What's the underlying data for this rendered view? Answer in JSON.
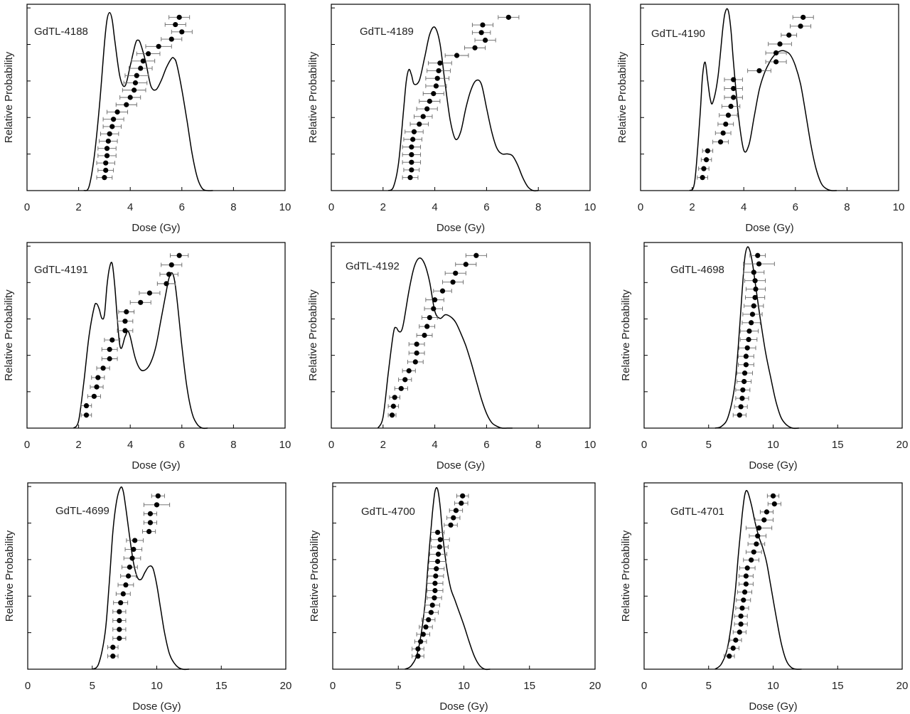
{
  "chart_data": [
    {
      "type": "line",
      "title": "GdTL-4188",
      "xlabel": "Dose (Gy)",
      "ylabel": "Relative Probability",
      "xlim": [
        0,
        10
      ],
      "xticks": [
        "0",
        "2",
        "4",
        "6",
        "8",
        "10"
      ],
      "curve": {
        "x": [
          2.2,
          2.4,
          2.6,
          2.8,
          3.0,
          3.1,
          3.2,
          3.3,
          3.4,
          3.6,
          3.8,
          4.0,
          4.2,
          4.3,
          4.4,
          4.6,
          4.8,
          5.0,
          5.2,
          5.4,
          5.6,
          5.7,
          5.8,
          6.0,
          6.2,
          6.4,
          6.6,
          6.8,
          7.0,
          7.2
        ],
        "y": [
          0.0,
          0.02,
          0.18,
          0.45,
          0.8,
          0.93,
          0.97,
          0.93,
          0.82,
          0.62,
          0.57,
          0.68,
          0.8,
          0.82,
          0.8,
          0.7,
          0.57,
          0.55,
          0.6,
          0.67,
          0.72,
          0.72,
          0.69,
          0.55,
          0.38,
          0.2,
          0.07,
          0.01,
          0.0,
          0.0
        ]
      },
      "points": {
        "dose": [
          3.0,
          3.05,
          3.05,
          3.1,
          3.1,
          3.15,
          3.2,
          3.3,
          3.35,
          3.5,
          3.85,
          4.0,
          4.15,
          4.2,
          4.25,
          4.4,
          4.5,
          4.7,
          5.1,
          5.6,
          6.0,
          5.75,
          5.9
        ],
        "err": [
          0.3,
          0.3,
          0.35,
          0.35,
          0.35,
          0.35,
          0.35,
          0.35,
          0.4,
          0.4,
          0.4,
          0.4,
          0.45,
          0.45,
          0.45,
          0.45,
          0.45,
          0.45,
          0.5,
          0.4,
          0.4,
          0.4,
          0.4
        ]
      }
    },
    {
      "type": "line",
      "title": "GdTL-4189",
      "xlabel": "Dose (Gy)",
      "ylabel": "Relative Probability",
      "xlim": [
        0,
        10
      ],
      "xticks": [
        "0",
        "2",
        "4",
        "6",
        "8",
        "10"
      ],
      "curve": {
        "x": [
          2.2,
          2.4,
          2.6,
          2.8,
          2.9,
          3.0,
          3.1,
          3.2,
          3.4,
          3.6,
          3.8,
          4.0,
          4.2,
          4.4,
          4.6,
          4.8,
          5.0,
          5.2,
          5.4,
          5.6,
          5.8,
          6.0,
          6.2,
          6.4,
          6.6,
          6.8,
          7.0,
          7.2,
          7.4,
          7.6,
          7.8,
          8.0
        ],
        "y": [
          0.0,
          0.02,
          0.15,
          0.45,
          0.6,
          0.66,
          0.63,
          0.58,
          0.6,
          0.72,
          0.85,
          0.89,
          0.8,
          0.58,
          0.38,
          0.28,
          0.32,
          0.45,
          0.55,
          0.6,
          0.58,
          0.45,
          0.32,
          0.23,
          0.2,
          0.2,
          0.19,
          0.14,
          0.07,
          0.02,
          0.0,
          0.0
        ]
      },
      "points": {
        "dose": [
          3.05,
          3.1,
          3.1,
          3.1,
          3.1,
          3.15,
          3.2,
          3.4,
          3.55,
          3.7,
          3.8,
          3.95,
          4.05,
          4.1,
          4.15,
          4.2,
          4.85,
          5.55,
          5.95,
          5.8,
          5.85,
          6.85
        ],
        "err": [
          0.3,
          0.3,
          0.35,
          0.35,
          0.35,
          0.35,
          0.35,
          0.35,
          0.35,
          0.4,
          0.4,
          0.4,
          0.4,
          0.45,
          0.45,
          0.45,
          0.45,
          0.4,
          0.4,
          0.35,
          0.4,
          0.4
        ]
      }
    },
    {
      "type": "line",
      "title": "GdTL-4190",
      "xlabel": "Dose (Gy)",
      "ylabel": "Relative Probability",
      "xlim": [
        0,
        10
      ],
      "xticks": [
        "0",
        "2",
        "4",
        "6",
        "8",
        "10"
      ],
      "curve": {
        "x": [
          1.9,
          2.1,
          2.3,
          2.4,
          2.5,
          2.6,
          2.7,
          2.8,
          3.0,
          3.2,
          3.3,
          3.4,
          3.5,
          3.6,
          3.8,
          4.0,
          4.2,
          4.4,
          4.6,
          4.8,
          5.0,
          5.2,
          5.4,
          5.6,
          5.8,
          6.0,
          6.2,
          6.4,
          6.6,
          6.8,
          7.0,
          7.2,
          7.4,
          7.6
        ],
        "y": [
          0.0,
          0.05,
          0.4,
          0.62,
          0.7,
          0.6,
          0.5,
          0.48,
          0.62,
          0.9,
          0.98,
          0.98,
          0.88,
          0.7,
          0.4,
          0.22,
          0.25,
          0.4,
          0.55,
          0.64,
          0.7,
          0.74,
          0.76,
          0.76,
          0.74,
          0.68,
          0.58,
          0.42,
          0.25,
          0.12,
          0.04,
          0.01,
          0.0,
          0.0
        ]
      },
      "points": {
        "dose": [
          2.4,
          2.45,
          2.55,
          2.6,
          3.1,
          3.2,
          3.3,
          3.4,
          3.5,
          3.6,
          3.6,
          3.6,
          4.6,
          5.25,
          5.25,
          5.4,
          5.75,
          6.2,
          6.3
        ],
        "err": [
          0.2,
          0.2,
          0.2,
          0.2,
          0.3,
          0.3,
          0.3,
          0.35,
          0.35,
          0.35,
          0.35,
          0.35,
          0.45,
          0.4,
          0.4,
          0.45,
          0.3,
          0.4,
          0.4
        ]
      }
    },
    {
      "type": "line",
      "title": "GdTL-4191",
      "xlabel": "Dose (Gy)",
      "ylabel": "Relative Probability",
      "xlim": [
        0,
        10
      ],
      "xticks": [
        "0",
        "2",
        "4",
        "6",
        "8",
        "10"
      ],
      "curve": {
        "x": [
          1.8,
          2.0,
          2.2,
          2.4,
          2.6,
          2.7,
          2.8,
          2.9,
          3.0,
          3.1,
          3.2,
          3.3,
          3.4,
          3.6,
          3.8,
          3.9,
          4.0,
          4.2,
          4.4,
          4.6,
          4.8,
          5.0,
          5.2,
          5.4,
          5.5,
          5.6,
          5.7,
          5.8,
          6.0,
          6.2,
          6.4,
          6.6,
          6.8,
          7.0
        ],
        "y": [
          0.0,
          0.04,
          0.25,
          0.5,
          0.66,
          0.68,
          0.65,
          0.6,
          0.62,
          0.78,
          0.88,
          0.9,
          0.78,
          0.45,
          0.5,
          0.53,
          0.5,
          0.38,
          0.32,
          0.32,
          0.36,
          0.45,
          0.6,
          0.75,
          0.82,
          0.85,
          0.82,
          0.72,
          0.45,
          0.22,
          0.08,
          0.02,
          0.0,
          0.0
        ]
      },
      "points": {
        "dose": [
          2.3,
          2.3,
          2.6,
          2.7,
          2.75,
          2.95,
          3.2,
          3.2,
          3.3,
          3.8,
          3.8,
          3.85,
          4.4,
          4.75,
          5.4,
          5.5,
          5.6,
          5.9
        ],
        "err": [
          0.2,
          0.2,
          0.25,
          0.25,
          0.25,
          0.25,
          0.3,
          0.3,
          0.3,
          0.3,
          0.3,
          0.3,
          0.4,
          0.4,
          0.35,
          0.35,
          0.4,
          0.35
        ]
      }
    },
    {
      "type": "line",
      "title": "GdTL-4192",
      "xlabel": "Dose (Gy)",
      "ylabel": "Relative Probability",
      "xlim": [
        0,
        10
      ],
      "xticks": [
        "0",
        "2",
        "4",
        "6",
        "8",
        "10"
      ],
      "curve": {
        "x": [
          1.8,
          2.0,
          2.2,
          2.4,
          2.5,
          2.6,
          2.7,
          2.8,
          3.0,
          3.2,
          3.4,
          3.6,
          3.8,
          4.0,
          4.2,
          4.4,
          4.6,
          4.8,
          5.0,
          5.2,
          5.4,
          5.6,
          5.8,
          6.0,
          6.2,
          6.4,
          6.6,
          6.8,
          7.0
        ],
        "y": [
          0.0,
          0.06,
          0.3,
          0.52,
          0.55,
          0.53,
          0.53,
          0.58,
          0.75,
          0.88,
          0.93,
          0.9,
          0.8,
          0.64,
          0.6,
          0.62,
          0.61,
          0.58,
          0.52,
          0.45,
          0.36,
          0.26,
          0.16,
          0.08,
          0.03,
          0.01,
          0.0,
          0.0,
          0.0
        ]
      },
      "points": {
        "dose": [
          2.35,
          2.4,
          2.45,
          2.7,
          2.85,
          3.0,
          3.25,
          3.3,
          3.3,
          3.6,
          3.7,
          3.8,
          3.95,
          4.0,
          4.3,
          4.7,
          4.8,
          5.2,
          5.6
        ],
        "err": [
          0.15,
          0.2,
          0.2,
          0.25,
          0.25,
          0.25,
          0.3,
          0.3,
          0.3,
          0.3,
          0.3,
          0.3,
          0.35,
          0.35,
          0.35,
          0.4,
          0.4,
          0.4,
          0.4
        ]
      }
    },
    {
      "type": "line",
      "title": "GdTL-4698",
      "xlabel": "Dose (Gy)",
      "ylabel": "Relative Probability",
      "xlim": [
        0,
        20
      ],
      "xticks": [
        "0",
        "5",
        "10",
        "15",
        "20"
      ],
      "curve": {
        "x": [
          5.5,
          6.0,
          6.5,
          7.0,
          7.3,
          7.6,
          7.8,
          8.0,
          8.2,
          8.4,
          8.6,
          9.0,
          9.4,
          9.8,
          10.2,
          10.6,
          11.0,
          11.5,
          12.0
        ],
        "y": [
          0.0,
          0.01,
          0.06,
          0.22,
          0.45,
          0.75,
          0.93,
          0.99,
          0.97,
          0.9,
          0.8,
          0.6,
          0.42,
          0.28,
          0.15,
          0.06,
          0.02,
          0.0,
          0.0
        ]
      },
      "points": {
        "dose": [
          7.4,
          7.5,
          7.6,
          7.65,
          7.75,
          7.8,
          7.9,
          7.9,
          8.0,
          8.1,
          8.15,
          8.3,
          8.4,
          8.5,
          8.6,
          8.65,
          8.6,
          8.5,
          8.9,
          8.8
        ],
        "err": [
          0.5,
          0.5,
          0.5,
          0.55,
          0.55,
          0.6,
          0.6,
          0.6,
          0.65,
          0.65,
          0.7,
          0.7,
          0.75,
          0.75,
          0.75,
          0.75,
          0.8,
          0.8,
          1.2,
          0.6
        ]
      }
    },
    {
      "type": "line",
      "title": "GdTL-4699",
      "xlabel": "Dose (Gy)",
      "ylabel": "Relative Probability",
      "xlim": [
        0,
        20
      ],
      "xticks": [
        "0",
        "5",
        "10",
        "15",
        "20"
      ],
      "curve": {
        "x": [
          5.0,
          5.5,
          6.0,
          6.3,
          6.6,
          6.9,
          7.2,
          7.4,
          7.6,
          7.9,
          8.2,
          8.5,
          8.8,
          9.1,
          9.4,
          9.7,
          10.0,
          10.3,
          10.6,
          11.0,
          11.5,
          12.0,
          12.5
        ],
        "y": [
          0.0,
          0.03,
          0.2,
          0.45,
          0.75,
          0.92,
          0.99,
          0.97,
          0.88,
          0.72,
          0.58,
          0.5,
          0.49,
          0.53,
          0.56,
          0.55,
          0.46,
          0.33,
          0.2,
          0.08,
          0.02,
          0.0,
          0.0
        ]
      },
      "points": {
        "dose": [
          6.6,
          6.6,
          7.1,
          7.1,
          7.1,
          7.1,
          7.2,
          7.4,
          7.6,
          7.8,
          7.9,
          8.1,
          8.2,
          8.3,
          9.4,
          9.5,
          9.5,
          10.0,
          10.1
        ],
        "err": [
          0.4,
          0.4,
          0.5,
          0.5,
          0.5,
          0.5,
          0.55,
          0.55,
          0.6,
          0.6,
          0.6,
          0.65,
          0.65,
          0.65,
          0.5,
          0.5,
          0.5,
          1.0,
          0.5
        ]
      }
    },
    {
      "type": "line",
      "title": "GdTL-4700",
      "xlabel": "Dose (Gy)",
      "ylabel": "Relative Probability",
      "xlim": [
        0,
        20
      ],
      "xticks": [
        "0",
        "5",
        "10",
        "15",
        "20"
      ],
      "curve": {
        "x": [
          5.5,
          6.0,
          6.5,
          7.0,
          7.3,
          7.6,
          7.8,
          8.0,
          8.2,
          8.4,
          8.7,
          9.0,
          9.3,
          9.6,
          10.0,
          10.4,
          10.8,
          11.2,
          11.6,
          12.0
        ],
        "y": [
          0.0,
          0.02,
          0.1,
          0.33,
          0.6,
          0.85,
          0.97,
          0.98,
          0.88,
          0.72,
          0.55,
          0.44,
          0.38,
          0.32,
          0.24,
          0.15,
          0.07,
          0.02,
          0.0,
          0.0
        ]
      },
      "points": {
        "dose": [
          6.5,
          6.5,
          6.7,
          6.9,
          7.1,
          7.3,
          7.5,
          7.6,
          7.75,
          7.8,
          7.8,
          7.85,
          7.9,
          8.0,
          8.05,
          8.15,
          8.2,
          8.0,
          9.0,
          9.2,
          9.4,
          9.8,
          9.9
        ],
        "err": [
          0.45,
          0.45,
          0.45,
          0.5,
          0.5,
          0.5,
          0.55,
          0.55,
          0.55,
          0.6,
          0.6,
          0.6,
          0.6,
          0.65,
          0.65,
          0.65,
          0.7,
          0.5,
          0.5,
          0.5,
          0.5,
          0.5,
          0.45
        ]
      }
    },
    {
      "type": "line",
      "title": "GdTL-4701",
      "xlabel": "Dose (Gy)",
      "ylabel": "Relative Probability",
      "xlim": [
        0,
        20
      ],
      "xticks": [
        "0",
        "5",
        "10",
        "15",
        "20"
      ],
      "curve": {
        "x": [
          5.5,
          6.0,
          6.5,
          7.0,
          7.3,
          7.6,
          7.8,
          8.0,
          8.3,
          8.6,
          8.9,
          9.2,
          9.5,
          9.8,
          10.2,
          10.6,
          11.0,
          11.4,
          11.8,
          12.2
        ],
        "y": [
          0.0,
          0.03,
          0.13,
          0.38,
          0.62,
          0.84,
          0.95,
          0.97,
          0.9,
          0.8,
          0.72,
          0.66,
          0.58,
          0.46,
          0.3,
          0.15,
          0.05,
          0.01,
          0.0,
          0.0
        ]
      },
      "points": {
        "dose": [
          6.6,
          6.9,
          7.1,
          7.4,
          7.5,
          7.5,
          7.6,
          7.7,
          7.8,
          7.9,
          7.9,
          8.0,
          8.3,
          8.5,
          8.7,
          8.8,
          8.9,
          9.3,
          9.5,
          10.1,
          10.0
        ],
        "err": [
          0.4,
          0.45,
          0.45,
          0.5,
          0.5,
          0.5,
          0.5,
          0.55,
          0.55,
          0.55,
          0.55,
          0.6,
          0.6,
          0.6,
          0.65,
          0.65,
          1.0,
          0.7,
          0.5,
          0.5,
          0.45
        ]
      }
    }
  ]
}
